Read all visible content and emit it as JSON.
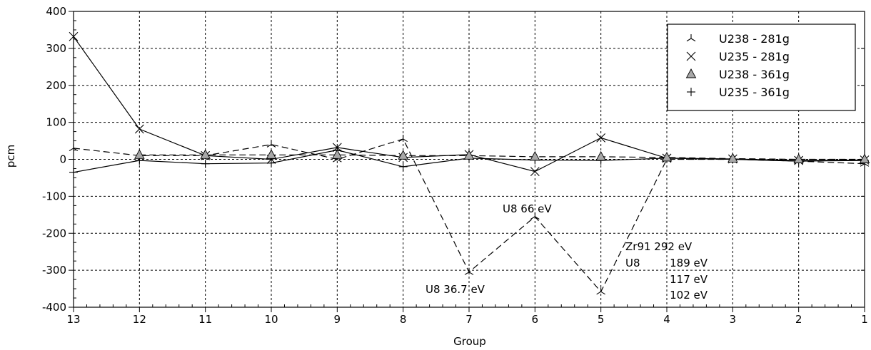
{
  "chart_data": {
    "type": "line",
    "xlabel": "Group",
    "ylabel": "pcm",
    "x": [
      13,
      12,
      11,
      10,
      9,
      8,
      7,
      6,
      5,
      4,
      3,
      2,
      1
    ],
    "x_reversed": true,
    "ylim": [
      -400,
      400
    ],
    "yticks": [
      400,
      300,
      200,
      100,
      0,
      -100,
      -200,
      -300,
      -400
    ],
    "grid": true,
    "legend_position": "top-right",
    "series": [
      {
        "name": "U238 - 281g",
        "marker": "tri-down",
        "line": "dashed",
        "values": [
          30,
          10,
          10,
          40,
          0,
          55,
          -305,
          -155,
          -358,
          0,
          0,
          -5,
          -12
        ]
      },
      {
        "name": "U235 - 281g",
        "marker": "x",
        "line": "solid",
        "values": [
          332,
          82,
          10,
          0,
          32,
          5,
          13,
          -33,
          58,
          3,
          1,
          -3,
          -2
        ]
      },
      {
        "name": "U238 - 361g",
        "marker": "triangle",
        "line": "dashed",
        "values": [
          null,
          12,
          12,
          12,
          12,
          10,
          10,
          7,
          7,
          5,
          2,
          0,
          0
        ]
      },
      {
        "name": "U235 - 361g",
        "marker": "plus",
        "line": "solid",
        "values": [
          -35,
          -3,
          -12,
          -10,
          25,
          -20,
          3,
          -2,
          -3,
          3,
          0,
          -5,
          -3
        ]
      }
    ],
    "annotations": [
      {
        "text": "U8 66 eV"
      },
      {
        "text": "U8 36.7 eV"
      },
      {
        "text": "Zr91 292 eV"
      },
      {
        "text": "U8"
      },
      {
        "text": "189 eV"
      },
      {
        "text": "117 eV"
      },
      {
        "text": "102 eV"
      }
    ]
  }
}
